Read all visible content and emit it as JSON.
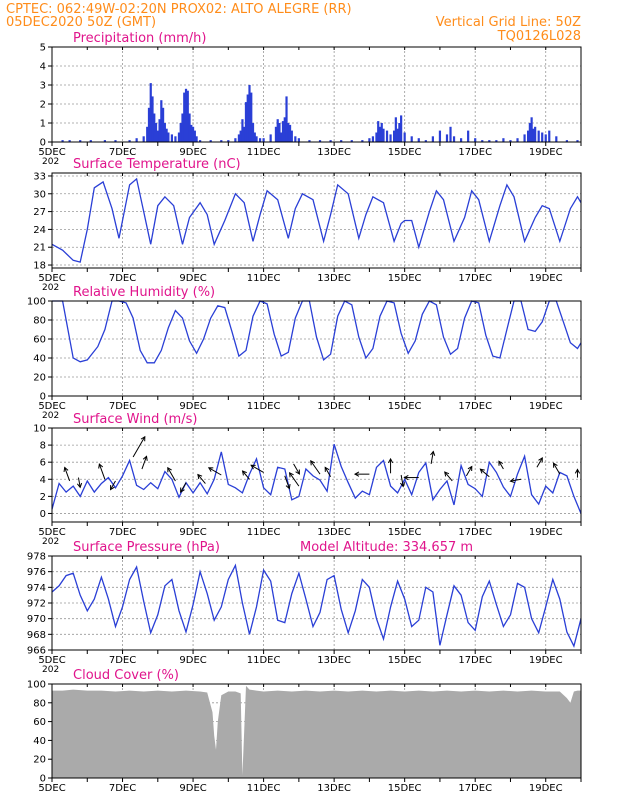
{
  "header": {
    "line1_left": "CPTEC:   062:49W-02:20N   PROX02: ALTO ALEGRE (RR)",
    "line2_left": "05DEC2020 50Z (GMT)",
    "line2_right": "Vertical Grid Line: 50Z",
    "line3_right": "TQ0126L028"
  },
  "colors": {
    "header": "#ff8c1a",
    "title": "#e0148c",
    "line": "#2a3fd6",
    "cloud": "#aaaaaa",
    "arrow": "#000000"
  },
  "x_axis": {
    "labels": [
      "5DEC",
      "7DEC",
      "9DEC",
      "11DEC",
      "13DEC",
      "15DEC",
      "17DEC",
      "19DEC"
    ],
    "start_day": 5,
    "end_day": 20,
    "truncated_label": "202"
  },
  "chart_data": [
    {
      "type": "bar",
      "title": "Precipitation (mm/h)",
      "ylim": [
        0,
        5
      ],
      "yticks": [
        "0",
        "1",
        "2",
        "3",
        "4",
        "5"
      ],
      "x": [
        5.3,
        5.5,
        5.8,
        6.1,
        6.5,
        6.8,
        7.2,
        7.4,
        7.6,
        7.7,
        7.75,
        7.8,
        7.85,
        7.9,
        7.95,
        8.0,
        8.05,
        8.1,
        8.15,
        8.2,
        8.25,
        8.3,
        8.4,
        8.5,
        8.6,
        8.65,
        8.7,
        8.75,
        8.8,
        8.85,
        8.9,
        8.95,
        9.0,
        9.05,
        9.1,
        9.2,
        9.5,
        9.8,
        10.0,
        10.2,
        10.3,
        10.35,
        10.4,
        10.45,
        10.5,
        10.55,
        10.6,
        10.65,
        10.7,
        10.75,
        10.8,
        10.9,
        11.0,
        11.2,
        11.35,
        11.4,
        11.45,
        11.5,
        11.55,
        11.6,
        11.65,
        11.7,
        11.75,
        11.8,
        11.9,
        12.0,
        12.3,
        12.6,
        12.9,
        13.2,
        13.5,
        13.8,
        14.0,
        14.1,
        14.2,
        14.25,
        14.3,
        14.35,
        14.4,
        14.5,
        14.6,
        14.7,
        14.75,
        14.8,
        14.85,
        14.9,
        15.0,
        15.2,
        15.4,
        15.6,
        15.8,
        16.0,
        16.2,
        16.3,
        16.4,
        16.6,
        16.8,
        17.0,
        17.2,
        17.4,
        17.6,
        17.8,
        18.0,
        18.2,
        18.4,
        18.5,
        18.55,
        18.6,
        18.65,
        18.7,
        18.8,
        18.9,
        19.0,
        19.1,
        19.3,
        19.6,
        19.9
      ],
      "values": [
        0.1,
        0.1,
        0.1,
        0.1,
        0.1,
        0.1,
        0.1,
        0.2,
        0.3,
        0.8,
        1.8,
        3.1,
        2.4,
        1.5,
        1.0,
        0.6,
        1.2,
        2.2,
        1.8,
        1.0,
        0.7,
        0.5,
        0.4,
        0.3,
        0.5,
        1.0,
        1.5,
        2.6,
        2.8,
        2.7,
        1.5,
        0.9,
        0.8,
        0.6,
        0.3,
        0.1,
        0.1,
        0.1,
        0.1,
        0.2,
        0.4,
        0.6,
        1.2,
        0.8,
        2.1,
        2.5,
        3.0,
        2.6,
        1.0,
        0.5,
        0.3,
        0.2,
        0.2,
        0.4,
        0.8,
        1.2,
        1.0,
        0.5,
        1.1,
        1.3,
        2.4,
        1.0,
        0.9,
        0.6,
        0.3,
        0.2,
        0.1,
        0.1,
        0.1,
        0.1,
        0.1,
        0.1,
        0.2,
        0.3,
        0.5,
        1.1,
        0.8,
        1.0,
        0.7,
        0.6,
        0.4,
        0.6,
        1.3,
        0.7,
        1.0,
        1.4,
        0.5,
        0.3,
        0.2,
        0.1,
        0.3,
        0.6,
        0.4,
        0.8,
        0.3,
        0.2,
        0.6,
        0.2,
        0.1,
        0.1,
        0.1,
        0.2,
        0.1,
        0.2,
        0.4,
        0.6,
        1.0,
        1.3,
        0.7,
        0.8,
        0.6,
        0.5,
        0.4,
        0.6,
        0.3,
        0.1,
        0.1
      ]
    },
    {
      "type": "line",
      "title": "Surface Temperature (nC)",
      "ylim": [
        17.5,
        33.5
      ],
      "yticks": [
        "18",
        "21",
        "24",
        "27",
        "30",
        "33"
      ],
      "x": [
        5.0,
        5.3,
        5.6,
        5.8,
        6.0,
        6.2,
        6.45,
        6.7,
        6.9,
        7.2,
        7.4,
        7.6,
        7.8,
        8.0,
        8.2,
        8.45,
        8.7,
        8.9,
        9.2,
        9.4,
        9.6,
        9.9,
        10.2,
        10.45,
        10.7,
        10.9,
        11.1,
        11.4,
        11.7,
        11.9,
        12.1,
        12.4,
        12.7,
        12.9,
        13.1,
        13.4,
        13.7,
        13.9,
        14.1,
        14.4,
        14.7,
        14.9,
        15.0,
        15.2,
        15.4,
        15.7,
        15.9,
        16.1,
        16.4,
        16.7,
        16.9,
        17.1,
        17.4,
        17.7,
        17.9,
        18.1,
        18.4,
        18.7,
        18.9,
        19.1,
        19.4,
        19.7,
        19.9,
        20.0
      ],
      "values": [
        21.5,
        20.5,
        18.8,
        18.5,
        24,
        31,
        32,
        27.5,
        22.5,
        31.5,
        32.5,
        27,
        21.5,
        28,
        29.5,
        28,
        21.5,
        26,
        28.5,
        26.5,
        21.5,
        25.5,
        30,
        28.5,
        22,
        26.5,
        30.5,
        29,
        22.5,
        27.5,
        30,
        29,
        22,
        26.5,
        31.5,
        30,
        22.5,
        26.5,
        29.5,
        28.5,
        22,
        25,
        25.5,
        25.5,
        21,
        27,
        30.5,
        29,
        22,
        26,
        30.5,
        29,
        22,
        28,
        31.5,
        29.5,
        22,
        26,
        28,
        27.5,
        22,
        27.5,
        29.5,
        28.5
      ]
    },
    {
      "type": "line",
      "title": "Relative Humidity (%)",
      "ylim": [
        0,
        100
      ],
      "yticks": [
        "0",
        "20",
        "40",
        "60",
        "80",
        "100"
      ],
      "x": [
        5.0,
        5.3,
        5.6,
        5.8,
        6.0,
        6.3,
        6.5,
        6.7,
        6.9,
        7.1,
        7.3,
        7.5,
        7.7,
        7.9,
        8.1,
        8.3,
        8.5,
        8.7,
        8.9,
        9.1,
        9.3,
        9.5,
        9.7,
        9.9,
        10.1,
        10.3,
        10.5,
        10.7,
        10.9,
        11.1,
        11.3,
        11.5,
        11.7,
        11.9,
        12.1,
        12.3,
        12.5,
        12.7,
        12.9,
        13.1,
        13.3,
        13.5,
        13.7,
        13.9,
        14.1,
        14.3,
        14.5,
        14.7,
        14.9,
        15.1,
        15.3,
        15.5,
        15.7,
        15.9,
        16.1,
        16.3,
        16.5,
        16.7,
        16.9,
        17.1,
        17.3,
        17.5,
        17.7,
        17.9,
        18.1,
        18.3,
        18.5,
        18.7,
        18.9,
        19.1,
        19.3,
        19.5,
        19.7,
        19.9,
        20.0
      ],
      "values": [
        100,
        100,
        40,
        36,
        38,
        52,
        70,
        100,
        100,
        98,
        82,
        48,
        35,
        35,
        48,
        72,
        90,
        82,
        58,
        45,
        60,
        82,
        95,
        93,
        68,
        42,
        48,
        84,
        100,
        97,
        65,
        42,
        46,
        82,
        100,
        100,
        62,
        38,
        44,
        84,
        100,
        96,
        62,
        40,
        50,
        84,
        100,
        98,
        66,
        45,
        58,
        86,
        100,
        96,
        62,
        44,
        50,
        82,
        100,
        98,
        64,
        42,
        40,
        70,
        100,
        100,
        70,
        68,
        78,
        100,
        100,
        78,
        56,
        50,
        56
      ]
    },
    {
      "type": "line",
      "title": "Surface Wind (m/s)",
      "ylim": [
        -1,
        10
      ],
      "yticks": [
        "0",
        "2",
        "4",
        "6",
        "8",
        "10"
      ],
      "x": [
        5.0,
        5.2,
        5.4,
        5.6,
        5.8,
        6.0,
        6.2,
        6.4,
        6.6,
        6.8,
        7.0,
        7.2,
        7.4,
        7.6,
        7.8,
        8.0,
        8.2,
        8.4,
        8.6,
        8.8,
        9.0,
        9.2,
        9.4,
        9.6,
        9.8,
        10.0,
        10.2,
        10.4,
        10.6,
        10.8,
        11.0,
        11.2,
        11.4,
        11.6,
        11.8,
        12.0,
        12.2,
        12.4,
        12.6,
        12.8,
        13.0,
        13.2,
        13.4,
        13.6,
        13.8,
        14.0,
        14.2,
        14.4,
        14.6,
        14.8,
        15.0,
        15.2,
        15.4,
        15.6,
        15.8,
        16.0,
        16.2,
        16.4,
        16.6,
        16.8,
        17.0,
        17.2,
        17.4,
        17.6,
        17.8,
        18.0,
        18.2,
        18.4,
        18.6,
        18.8,
        19.0,
        19.2,
        19.4,
        19.6,
        19.8,
        20.0
      ],
      "values": [
        0.5,
        3.5,
        2.5,
        3.2,
        2.0,
        3.8,
        2.5,
        3.5,
        4.2,
        3.0,
        4.4,
        6.2,
        3.3,
        2.8,
        3.6,
        2.9,
        4.9,
        4.0,
        1.9,
        3.6,
        2.4,
        3.6,
        2.3,
        4.0,
        7.2,
        3.4,
        3.0,
        2.4,
        4.6,
        6.4,
        3.0,
        2.2,
        5.4,
        5.2,
        1.6,
        2.0,
        5.2,
        4.4,
        3.9,
        2.6,
        8.1,
        5.5,
        3.6,
        1.8,
        2.6,
        2.2,
        5.4,
        6.2,
        3.2,
        2.4,
        4.0,
        2.2,
        4.8,
        5.9,
        1.6,
        2.8,
        3.8,
        1.0,
        5.6,
        3.4,
        2.9,
        2.0,
        6.0,
        4.8,
        3.1,
        2.0,
        4.6,
        6.7,
        2.2,
        1.1,
        3.2,
        2.4,
        4.8,
        4.4,
        2.0,
        0.0
      ],
      "arrows": [
        {
          "x": 5.5,
          "y": 3.8,
          "dir": 250,
          "len": 1.6
        },
        {
          "x": 5.75,
          "y": 4.2,
          "dir": 80,
          "len": 1.1
        },
        {
          "x": 6.5,
          "y": 4.0,
          "dir": 250,
          "len": 1.8
        },
        {
          "x": 6.8,
          "y": 3.8,
          "dir": 120,
          "len": 1.1
        },
        {
          "x": 7.3,
          "y": 6.6,
          "dir": 300,
          "len": 2.6
        },
        {
          "x": 7.55,
          "y": 5.2,
          "dir": 290,
          "len": 1.5
        },
        {
          "x": 8.5,
          "y": 3.8,
          "dir": 240,
          "len": 1.7
        },
        {
          "x": 8.8,
          "y": 3.6,
          "dir": 120,
          "len": 1.2
        },
        {
          "x": 9.35,
          "y": 3.5,
          "dir": 230,
          "len": 1.3
        },
        {
          "x": 9.8,
          "y": 4.5,
          "dir": 210,
          "len": 1.6
        },
        {
          "x": 10.6,
          "y": 4.0,
          "dir": 230,
          "len": 1.2
        },
        {
          "x": 11.0,
          "y": 4.8,
          "dir": 210,
          "len": 1.6
        },
        {
          "x": 11.6,
          "y": 4.4,
          "dir": 70,
          "len": 1.5
        },
        {
          "x": 11.85,
          "y": 5.8,
          "dir": 60,
          "len": 1.3
        },
        {
          "x": 12.0,
          "y": 3.2,
          "dir": 235,
          "len": 1.8
        },
        {
          "x": 12.6,
          "y": 4.6,
          "dir": 235,
          "len": 1.8
        },
        {
          "x": 12.9,
          "y": 4.3,
          "dir": 240,
          "len": 1.2
        },
        {
          "x": 14.0,
          "y": 4.6,
          "dir": 180,
          "len": 1.6
        },
        {
          "x": 14.6,
          "y": 4.7,
          "dir": 270,
          "len": 1.6
        },
        {
          "x": 14.9,
          "y": 4.5,
          "dir": 80,
          "len": 1.3
        },
        {
          "x": 15.4,
          "y": 4.2,
          "dir": 180,
          "len": 1.6
        },
        {
          "x": 15.75,
          "y": 5.8,
          "dir": 280,
          "len": 1.4
        },
        {
          "x": 16.35,
          "y": 3.8,
          "dir": 230,
          "len": 1.3
        },
        {
          "x": 16.75,
          "y": 4.4,
          "dir": 300,
          "len": 1.2
        },
        {
          "x": 17.4,
          "y": 4.3,
          "dir": 220,
          "len": 1.3
        },
        {
          "x": 17.8,
          "y": 5.2,
          "dir": 240,
          "len": 1.0
        },
        {
          "x": 18.3,
          "y": 4.0,
          "dir": 170,
          "len": 1.2
        },
        {
          "x": 18.75,
          "y": 5.4,
          "dir": 300,
          "len": 1.2
        },
        {
          "x": 19.4,
          "y": 4.6,
          "dir": 240,
          "len": 1.4
        },
        {
          "x": 19.9,
          "y": 4.2,
          "dir": 270,
          "len": 0.9
        }
      ]
    },
    {
      "type": "line",
      "title": "Surface Pressure (hPa)",
      "annotation": "Model Altitude: 334.657 m",
      "ylim": [
        966,
        978
      ],
      "yticks": [
        "966",
        "968",
        "970",
        "972",
        "974",
        "976",
        "978"
      ],
      "x": [
        5.0,
        5.2,
        5.4,
        5.6,
        5.8,
        6.0,
        6.2,
        6.4,
        6.6,
        6.8,
        7.0,
        7.2,
        7.4,
        7.6,
        7.8,
        8.0,
        8.2,
        8.4,
        8.6,
        8.8,
        9.0,
        9.2,
        9.4,
        9.6,
        9.8,
        10.0,
        10.2,
        10.4,
        10.6,
        10.8,
        11.0,
        11.2,
        11.4,
        11.6,
        11.8,
        12.0,
        12.2,
        12.4,
        12.6,
        12.8,
        13.0,
        13.2,
        13.4,
        13.6,
        13.8,
        14.0,
        14.2,
        14.4,
        14.6,
        14.8,
        15.0,
        15.2,
        15.4,
        15.6,
        15.8,
        16.0,
        16.2,
        16.4,
        16.6,
        16.8,
        17.0,
        17.2,
        17.4,
        17.6,
        17.8,
        18.0,
        18.2,
        18.4,
        18.6,
        18.8,
        19.0,
        19.2,
        19.4,
        19.6,
        19.8,
        20.0
      ],
      "values": [
        973.4,
        974.2,
        975.5,
        975.8,
        973.0,
        971.0,
        972.5,
        975.3,
        972.5,
        969.0,
        971.5,
        975.0,
        976.6,
        972.2,
        968.2,
        970.5,
        974.2,
        975.0,
        971.0,
        968.3,
        971.8,
        976.0,
        973.2,
        969.8,
        971.5,
        975.0,
        976.8,
        972.0,
        968.0,
        971.5,
        976.2,
        974.8,
        969.8,
        969.5,
        973.2,
        975.8,
        972.5,
        969.0,
        970.8,
        975.0,
        975.5,
        971.2,
        968.2,
        971.0,
        975.0,
        974.0,
        970.0,
        967.4,
        971.5,
        974.8,
        972.5,
        969.0,
        969.8,
        974.0,
        973.4,
        966.6,
        970.5,
        974.2,
        973.0,
        969.5,
        968.5,
        972.8,
        974.8,
        971.8,
        969.0,
        970.5,
        974.5,
        974.0,
        970.0,
        968.2,
        971.5,
        975.0,
        972.5,
        968.3,
        966.5,
        970.0
      ]
    },
    {
      "type": "area",
      "title": "Cloud Cover (%)",
      "ylim": [
        0,
        100
      ],
      "yticks": [
        "0",
        "20",
        "40",
        "60",
        "80",
        "100"
      ],
      "x": [
        5.0,
        5.3,
        5.6,
        6.0,
        6.4,
        6.8,
        7.2,
        7.6,
        8.0,
        8.4,
        8.8,
        9.2,
        9.4,
        9.55,
        9.6,
        9.65,
        9.7,
        9.8,
        10.0,
        10.2,
        10.35,
        10.4,
        10.45,
        10.5,
        10.6,
        10.8,
        11.0,
        11.4,
        11.8,
        12.2,
        12.6,
        13.0,
        13.4,
        13.8,
        14.2,
        14.6,
        15.0,
        15.4,
        15.8,
        16.2,
        16.6,
        17.0,
        17.4,
        17.8,
        18.2,
        18.6,
        19.0,
        19.4,
        19.6,
        19.7,
        19.8,
        19.9,
        20.0
      ],
      "values": [
        93,
        93,
        94,
        93,
        93,
        92,
        93,
        92,
        93,
        92,
        93,
        92,
        91,
        70,
        45,
        30,
        60,
        88,
        92,
        92,
        90,
        3,
        50,
        98,
        94,
        93,
        92,
        93,
        92,
        93,
        92,
        93,
        92,
        93,
        92,
        93,
        92,
        93,
        92,
        93,
        92,
        93,
        92,
        93,
        92,
        93,
        92,
        92,
        85,
        80,
        92,
        93,
        93
      ]
    }
  ]
}
